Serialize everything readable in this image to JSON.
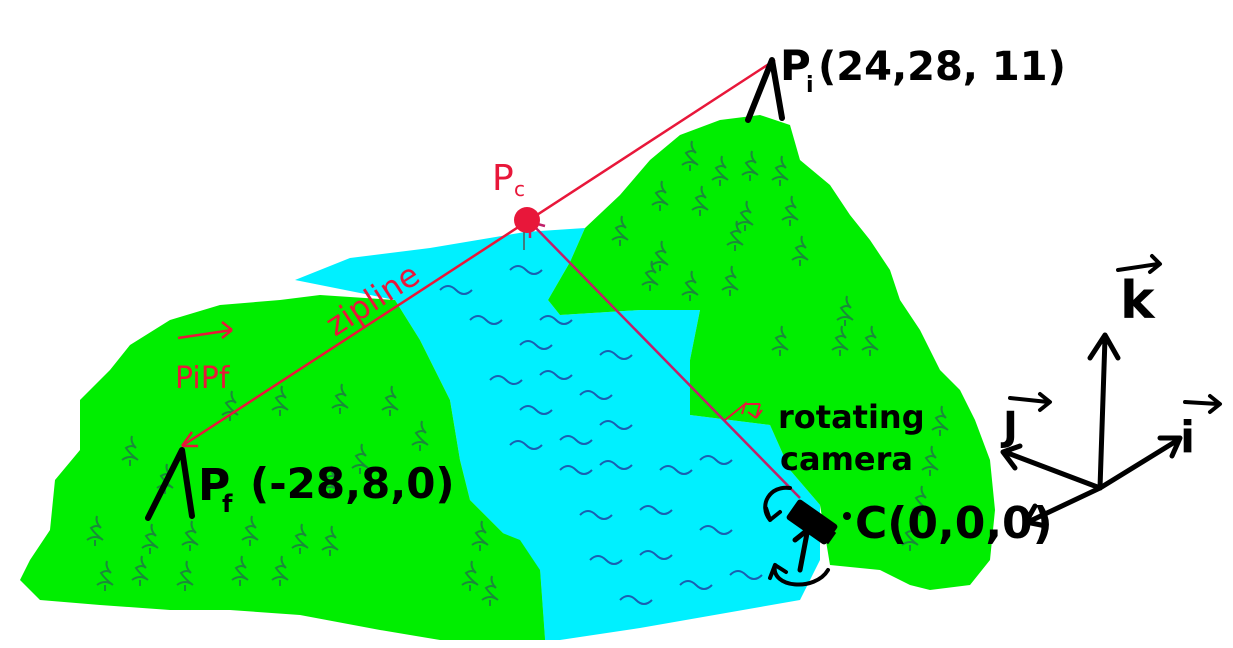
{
  "colors": {
    "land": "#00ee00",
    "tree": "#1a8a3a",
    "water": "#00f0ff",
    "wave": "#1a5fb0",
    "zipline": "#e8173a",
    "sight_line": "#c0206a",
    "ink": "#000000"
  },
  "labels": {
    "p_i": {
      "name": "P",
      "sub": "i",
      "coords": "(24,28, 11)"
    },
    "p_f": {
      "name": "P",
      "sub": "f",
      "coords": "(-28,8,0)"
    },
    "p_c": {
      "name": "P",
      "sub": "c"
    },
    "zipline": "zipline",
    "vector_pipf": "PiPf",
    "camera_line1": "rotating",
    "camera_line2": "camera",
    "camera_point": "C(0,0,0)",
    "axis_i": "i",
    "axis_j": "J",
    "axis_k": "k"
  },
  "icons": [
    "camera-icon",
    "rotate-arrow-icon",
    "pole-icon",
    "tree-icon",
    "wave-icon"
  ]
}
